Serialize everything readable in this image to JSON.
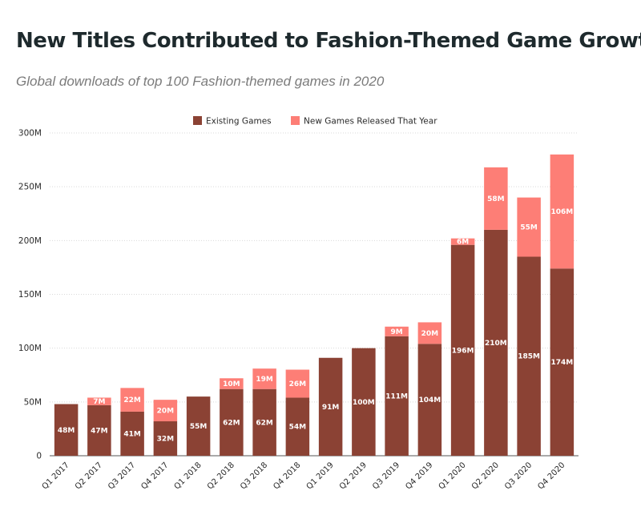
{
  "header": {
    "title": "New Titles Contributed to Fashion-Themed Game Growth",
    "subtitle": "Global downloads of top 100 Fashion-themed games in 2020"
  },
  "colors": {
    "existing": "#8b4234",
    "new": "#fd7e76"
  },
  "chart_data": {
    "type": "bar",
    "stacked": true,
    "categories": [
      "Q1 2017",
      "Q2 2017",
      "Q3 2017",
      "Q4 2017",
      "Q1 2018",
      "Q2 2018",
      "Q3 2018",
      "Q4 2018",
      "Q1 2019",
      "Q2 2019",
      "Q3 2019",
      "Q4 2019",
      "Q1 2020",
      "Q2 2020",
      "Q3 2020",
      "Q4 2020"
    ],
    "series": [
      {
        "name": "Existing Games",
        "values": [
          48,
          47,
          41,
          32,
          55,
          62,
          62,
          54,
          91,
          100,
          111,
          104,
          196,
          210,
          185,
          174
        ],
        "labels": [
          "48M",
          "47M",
          "41M",
          "32M",
          "55M",
          "62M",
          "62M",
          "54M",
          "91M",
          "100M",
          "111M",
          "104M",
          "196M",
          "210M",
          "185M",
          "174M"
        ]
      },
      {
        "name": "New Games Released That Year",
        "values": [
          0,
          7,
          22,
          20,
          0,
          10,
          19,
          26,
          0,
          0,
          9,
          20,
          6,
          58,
          55,
          106
        ],
        "labels": [
          "",
          "7M",
          "22M",
          "20M",
          "",
          "10M",
          "19M",
          "26M",
          "",
          "",
          "9M",
          "20M",
          "6M",
          "58M",
          "55M",
          "106M"
        ]
      }
    ],
    "ylim": [
      0,
      300
    ],
    "yticks": [
      0,
      50,
      100,
      150,
      200,
      250,
      300
    ],
    "ytick_labels": [
      "0",
      "50M",
      "100M",
      "150M",
      "200M",
      "250M",
      "300M"
    ],
    "legend_position": "top-center",
    "grid": true
  }
}
